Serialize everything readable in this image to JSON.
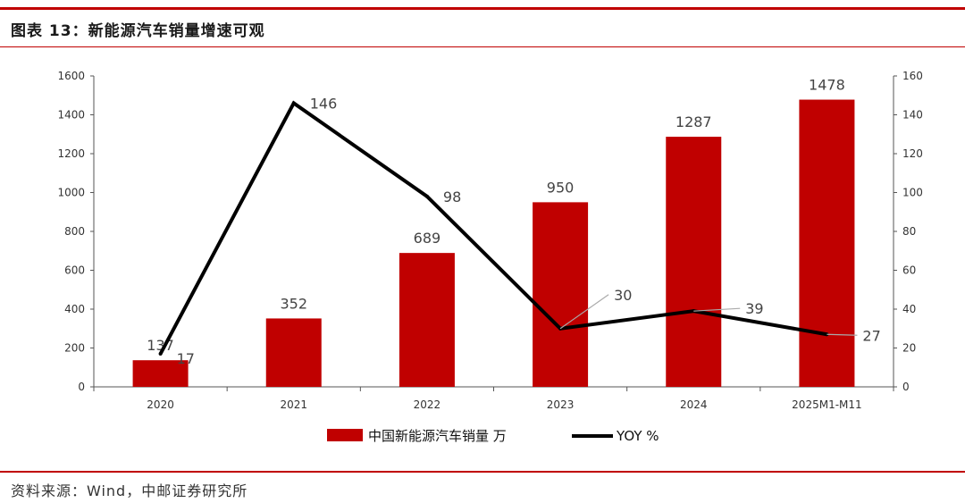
{
  "figure": {
    "title": "图表 13：新能源汽车销量增速可观",
    "source": "资料来源：Wind，中邮证券研究所"
  },
  "colors": {
    "accent": "#c00000",
    "bar": "#c00000",
    "line": "#000000",
    "leader": "#aaaaaa"
  },
  "chart_data": {
    "type": "bar",
    "categories": [
      "2020",
      "2021",
      "2022",
      "2023",
      "2024",
      "2025M1-M11"
    ],
    "series": [
      {
        "name": "中国新能源汽车销量 万",
        "type": "bar",
        "axis": "left",
        "values": [
          137,
          352,
          689,
          950,
          1287,
          1478
        ],
        "labels": [
          "137",
          "352",
          "689",
          "950",
          "1287",
          "1478"
        ]
      },
      {
        "name": "YOY %",
        "type": "line",
        "axis": "right",
        "values": [
          17,
          146,
          98,
          30,
          39,
          27
        ],
        "labels": [
          "17",
          "146",
          "98",
          "30",
          "39",
          "27"
        ]
      }
    ],
    "y_left": {
      "ylim": [
        0,
        1600
      ],
      "ticks": [
        "0",
        "200",
        "400",
        "600",
        "800",
        "1000",
        "1200",
        "1400",
        "1600"
      ]
    },
    "y_right": {
      "ylim": [
        0,
        160
      ],
      "ticks": [
        "0",
        "20",
        "40",
        "60",
        "80",
        "100",
        "120",
        "140",
        "160"
      ]
    },
    "grid": false,
    "legend_position": "bottom"
  }
}
